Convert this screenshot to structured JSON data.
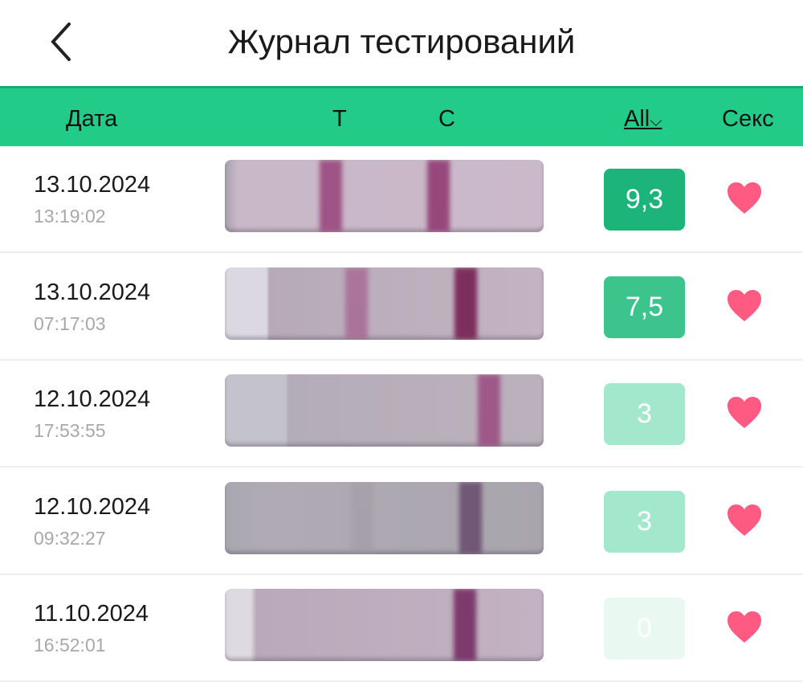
{
  "header": {
    "title": "Журнал тестирований",
    "back_icon": "chevron-left-icon"
  },
  "columns": {
    "date": "Дата",
    "t": "T",
    "c": "C",
    "filter": "All",
    "filter_icon": "chevron-down-icon",
    "sex": "Секс"
  },
  "colors": {
    "accent": "#22cc88",
    "heart": "#ff5a82"
  },
  "rows": [
    {
      "date": "13.10.2024",
      "time": "13:19:02",
      "value": "9,3",
      "badge_color": "#1db47a",
      "sex": true
    },
    {
      "date": "13.10.2024",
      "time": "07:17:03",
      "value": "7,5",
      "badge_color": "#3cc48c",
      "sex": true
    },
    {
      "date": "12.10.2024",
      "time": "17:53:55",
      "value": "3",
      "badge_color": "#a3e7cd",
      "sex": true
    },
    {
      "date": "12.10.2024",
      "time": "09:32:27",
      "value": "3",
      "badge_color": "#a3e7cd",
      "sex": true
    },
    {
      "date": "11.10.2024",
      "time": "16:52:01",
      "value": "0",
      "badge_color": "#e9f8f1",
      "sex": true
    }
  ]
}
